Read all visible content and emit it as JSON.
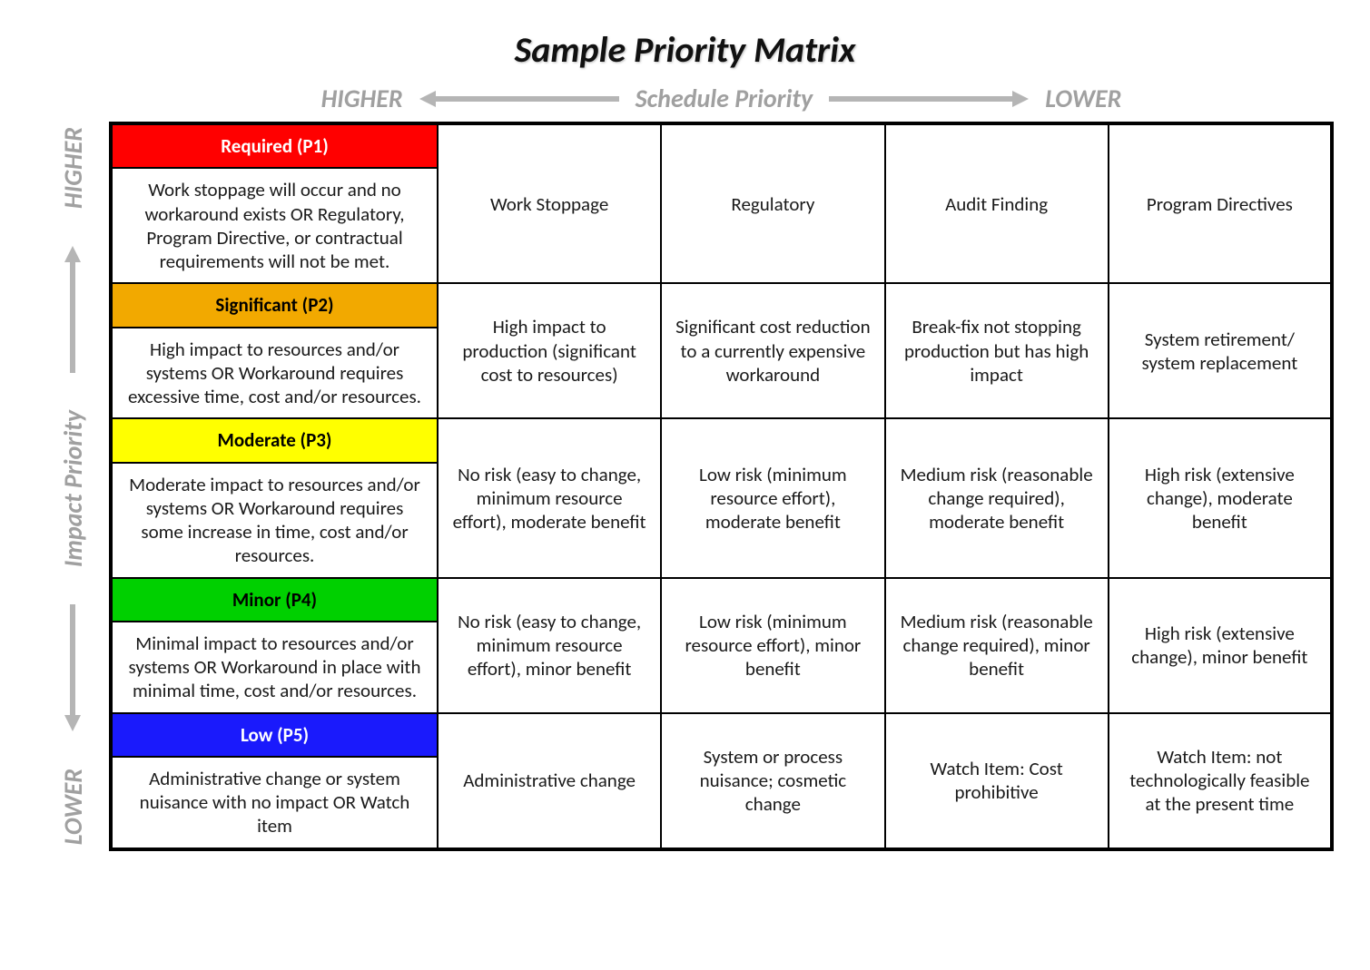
{
  "title": "Sample Priority Matrix",
  "axes": {
    "horizontal": {
      "label": "Schedule Priority",
      "left_end": "HIGHER",
      "right_end": "LOWER"
    },
    "vertical": {
      "label": "Impact Priority",
      "top_end": "HIGHER",
      "bottom_end": "LOWER"
    }
  },
  "arrow_color": "#b5b5b5",
  "n_cols": 4,
  "rows": [
    {
      "label": "Required (P1)",
      "header_bg": "#ff0000",
      "header_fg": "#ffffff",
      "description": "Work stoppage will occur and no workaround exists OR Regulatory, Program Directive, or contractual requirements will not be met.",
      "cells": [
        "Work Stoppage",
        "Regulatory",
        "Audit Finding",
        "Program Directives"
      ]
    },
    {
      "label": "Significant (P2)",
      "header_bg": "#f2a900",
      "header_fg": "#000000",
      "description": "High impact to resources and/or systems OR Workaround requires excessive time, cost and/or resources.",
      "cells": [
        "High impact to production (significant cost to resources)",
        "Significant cost reduction to a currently expensive workaround",
        "Break-fix not stopping production but has high impact",
        "System retirement/ system replacement"
      ]
    },
    {
      "label": "Moderate (P3)",
      "header_bg": "#ffff00",
      "header_fg": "#000000",
      "description": "Moderate impact to resources and/or systems OR Workaround requires some increase in time, cost and/or resources.",
      "cells": [
        "No risk (easy to change, minimum resource effort), moderate benefit",
        "Low risk (minimum resource effort), moderate benefit",
        "Medium risk (reasonable change required), moderate benefit",
        "High risk (extensive change), moderate benefit"
      ]
    },
    {
      "label": "Minor (P4)",
      "header_bg": "#00d000",
      "header_fg": "#000000",
      "description": "Minimal impact to resources and/or systems OR Workaround in place with minimal time, cost and/or resources.",
      "cells": [
        "No risk (easy to change, minimum resource effort), minor benefit",
        "Low risk (minimum resource effort), minor benefit",
        "Medium risk (reasonable change required), minor benefit",
        "High risk (extensive change), minor benefit"
      ]
    },
    {
      "label": "Low (P5)",
      "header_bg": "#1a1afc",
      "header_fg": "#ffffff",
      "description": "Administrative change or system nuisance with no impact OR Watch item",
      "cells": [
        "Administrative change",
        "System or process nuisance; cosmetic change",
        "Watch Item: Cost prohibitive",
        "Watch Item: not technologically feasible at the present time"
      ]
    }
  ]
}
